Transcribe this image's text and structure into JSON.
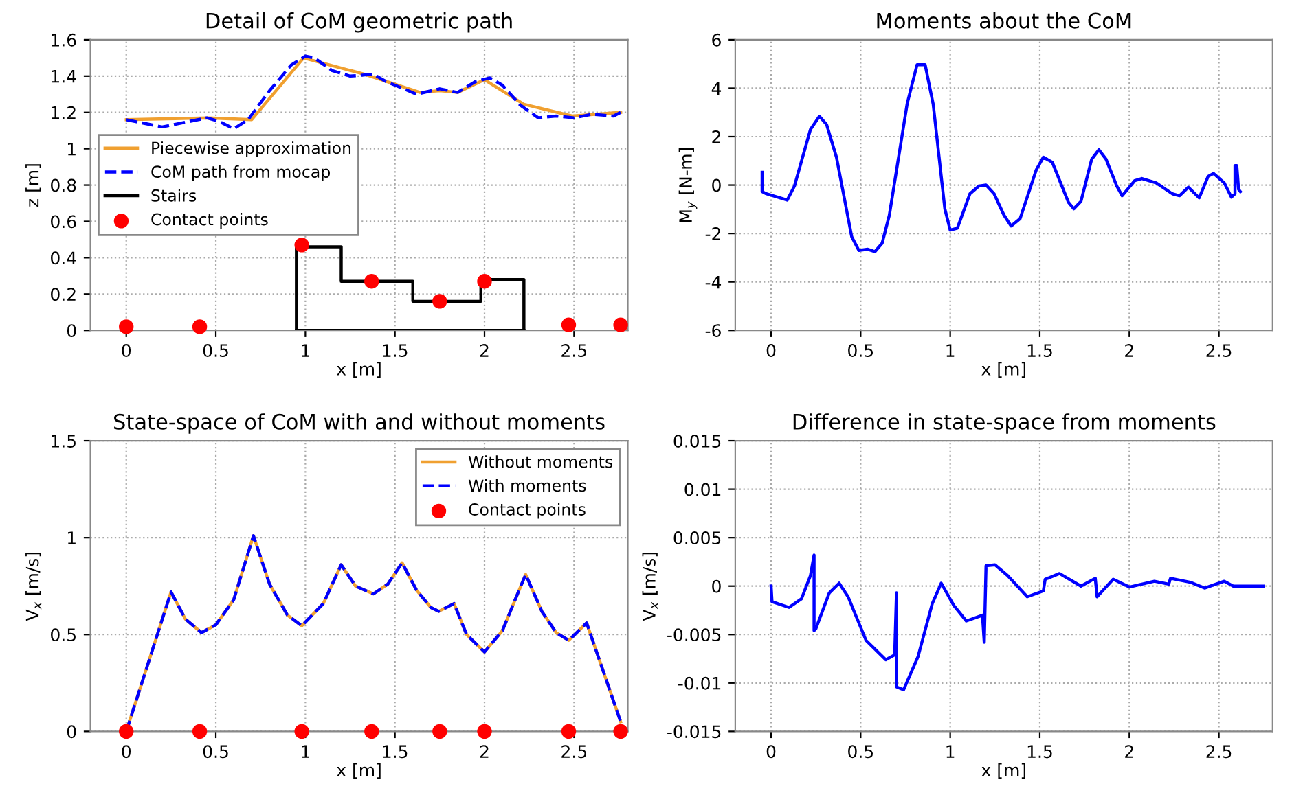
{
  "chart_data": [
    {
      "type": "line",
      "title": "Detail of CoM geometric path",
      "xlabel": "x [m]",
      "ylabel": "z [m]",
      "xlim": [
        -0.2,
        2.8
      ],
      "ylim": [
        0,
        1.6
      ],
      "xticks": [
        0,
        0.5,
        1,
        1.5,
        2,
        2.5
      ],
      "yticks": [
        0,
        0.2,
        0.4,
        0.6,
        0.8,
        1,
        1.2,
        1.4,
        1.6
      ],
      "grid": true,
      "legend": "center left",
      "series": [
        {
          "name": "Piecewise approximation",
          "type": "line",
          "color": "#f0a030",
          "line_style": "solid",
          "x": [
            0,
            0.46,
            0.7,
            0.99,
            1.33,
            1.64,
            1.75,
            1.85,
            2.0,
            2.22,
            2.49,
            2.76
          ],
          "values": [
            1.16,
            1.17,
            1.16,
            1.5,
            1.41,
            1.31,
            1.32,
            1.31,
            1.38,
            1.245,
            1.18,
            1.2
          ]
        },
        {
          "name": "CoM path from mocap",
          "type": "line",
          "color": "#0000ff",
          "line_style": "dashed",
          "x": [
            0,
            0.2,
            0.45,
            0.52,
            0.6,
            0.68,
            0.8,
            0.92,
            1.0,
            1.05,
            1.15,
            1.25,
            1.38,
            1.45,
            1.55,
            1.62,
            1.75,
            1.85,
            1.95,
            2.03,
            2.1,
            2.2,
            2.3,
            2.4,
            2.5,
            2.6,
            2.72,
            2.76
          ],
          "values": [
            1.16,
            1.12,
            1.17,
            1.15,
            1.11,
            1.16,
            1.32,
            1.46,
            1.51,
            1.5,
            1.43,
            1.4,
            1.41,
            1.37,
            1.33,
            1.3,
            1.33,
            1.31,
            1.37,
            1.39,
            1.35,
            1.24,
            1.17,
            1.18,
            1.17,
            1.19,
            1.18,
            1.2
          ]
        },
        {
          "name": "Stairs",
          "color": "#000000",
          "line_style": "solid",
          "x": [
            0.95,
            0.95,
            1.2,
            1.2,
            1.6,
            1.6,
            1.98,
            1.98,
            2.22,
            2.22
          ],
          "values": [
            0,
            0.46,
            0.46,
            0.27,
            0.27,
            0.16,
            0.16,
            0.28,
            0.28,
            0
          ]
        },
        {
          "color": "#000000",
          "line_style": "solid",
          "x": [
            0.95,
            2.22
          ],
          "values": [
            0,
            0
          ]
        },
        {
          "name": "Contact points",
          "type": "scatter",
          "color": "#ff0000",
          "marker": "circle",
          "x": [
            0,
            0.41,
            0.98,
            1.37,
            1.75,
            2.0,
            2.47,
            2.76
          ],
          "values": [
            0.02,
            0.02,
            0.47,
            0.27,
            0.16,
            0.27,
            0.03,
            0.03
          ]
        }
      ]
    },
    {
      "type": "line",
      "title": "Moments about the CoM",
      "xlabel": "x [m]",
      "ylabel": "M$_{y}$ [N-m]",
      "xlim": [
        -0.2,
        2.8
      ],
      "ylim": [
        -6,
        6
      ],
      "xticks": [
        0,
        0.5,
        1,
        1.5,
        2,
        2.5
      ],
      "yticks": [
        -6,
        -4,
        -2,
        0,
        2,
        4,
        6
      ],
      "grid": true,
      "series": [
        {
          "type": "line",
          "color": "#0000ff",
          "line_style": "solid",
          "x": [
            -0.05,
            -0.05,
            -0.03,
            0.09,
            0.13,
            0.22,
            0.27,
            0.31,
            0.365,
            0.45,
            0.49,
            0.54,
            0.58,
            0.62,
            0.66,
            0.76,
            0.815,
            0.86,
            0.905,
            0.97,
            1.0,
            1.04,
            1.11,
            1.16,
            1.2,
            1.245,
            1.3,
            1.34,
            1.39,
            1.48,
            1.52,
            1.57,
            1.66,
            1.69,
            1.73,
            1.79,
            1.83,
            1.87,
            1.93,
            1.96,
            2.03,
            2.07,
            2.15,
            2.24,
            2.28,
            2.33,
            2.39,
            2.44,
            2.47,
            2.53,
            2.57,
            2.59,
            2.59,
            2.6,
            2.61,
            2.62
          ],
          "values": [
            0.53,
            -0.27,
            -0.35,
            -0.62,
            -0.05,
            2.3,
            2.84,
            2.5,
            1.15,
            -2.13,
            -2.7,
            -2.65,
            -2.75,
            -2.4,
            -1.25,
            3.37,
            4.97,
            4.97,
            3.34,
            -0.98,
            -1.86,
            -1.78,
            -0.36,
            -0.04,
            0,
            -0.36,
            -1.24,
            -1.69,
            -1.39,
            0.62,
            1.15,
            0.94,
            -0.71,
            -0.98,
            -0.67,
            1.07,
            1.46,
            1.07,
            -0.04,
            -0.44,
            0.18,
            0.27,
            0.09,
            -0.36,
            -0.44,
            -0.09,
            -0.53,
            0.36,
            0.48,
            0.09,
            -0.5,
            -0.36,
            0.8,
            0.8,
            -0.18,
            -0.27
          ]
        }
      ]
    },
    {
      "type": "line",
      "title": "State-space of CoM with and without moments",
      "xlabel": "x [m]",
      "ylabel": "V$_{x}$ [m/s]",
      "xlim": [
        -0.2,
        2.8
      ],
      "ylim": [
        0,
        1.5
      ],
      "xticks": [
        0,
        0.5,
        1,
        1.5,
        2,
        2.5
      ],
      "yticks": [
        0,
        0.5,
        1,
        1.5
      ],
      "grid": true,
      "legend": "top right",
      "series": [
        {
          "name": "Without moments",
          "type": "line",
          "color": "#f0a030",
          "line_style": "solid",
          "x": [
            0,
            0.25,
            0.33,
            0.42,
            0.5,
            0.6,
            0.71,
            0.8,
            0.9,
            0.98,
            1.1,
            1.2,
            1.28,
            1.38,
            1.46,
            1.54,
            1.62,
            1.7,
            1.745,
            1.83,
            1.9,
            2.0,
            2.1,
            2.18,
            2.23,
            2.32,
            2.4,
            2.47,
            2.57,
            2.76
          ],
          "values": [
            0,
            0.72,
            0.58,
            0.51,
            0.55,
            0.68,
            1.01,
            0.76,
            0.6,
            0.545,
            0.66,
            0.86,
            0.75,
            0.71,
            0.76,
            0.87,
            0.73,
            0.64,
            0.62,
            0.66,
            0.5,
            0.41,
            0.52,
            0.7,
            0.81,
            0.62,
            0.51,
            0.47,
            0.56,
            0.05
          ]
        },
        {
          "name": "With moments",
          "type": "line",
          "color": "#0000ff",
          "line_style": "dashed",
          "x": [
            0,
            0.25,
            0.33,
            0.42,
            0.5,
            0.6,
            0.71,
            0.8,
            0.9,
            0.98,
            1.1,
            1.2,
            1.28,
            1.38,
            1.46,
            1.54,
            1.62,
            1.7,
            1.745,
            1.83,
            1.9,
            2.0,
            2.1,
            2.18,
            2.23,
            2.32,
            2.4,
            2.47,
            2.57,
            2.76
          ],
          "values": [
            0,
            0.72,
            0.58,
            0.51,
            0.55,
            0.68,
            1.01,
            0.76,
            0.6,
            0.545,
            0.66,
            0.86,
            0.75,
            0.71,
            0.76,
            0.87,
            0.73,
            0.64,
            0.62,
            0.66,
            0.5,
            0.41,
            0.52,
            0.7,
            0.81,
            0.62,
            0.51,
            0.47,
            0.56,
            0.05
          ]
        },
        {
          "name": "Contact points",
          "type": "scatter",
          "color": "#ff0000",
          "marker": "circle",
          "x": [
            0,
            0.41,
            0.98,
            1.37,
            1.75,
            2.0,
            2.47,
            2.76
          ],
          "values": [
            0,
            0,
            0,
            0,
            0,
            0,
            0,
            0
          ]
        }
      ]
    },
    {
      "type": "line",
      "title": "Difference in state-space from moments",
      "xlabel": "x [m]",
      "ylabel": "V$_{x}$ [m/s]",
      "xlim": [
        -0.2,
        2.8
      ],
      "ylim": [
        -0.015,
        0.015
      ],
      "xticks": [
        0,
        0.5,
        1,
        1.5,
        2,
        2.5
      ],
      "yticks": [
        -0.015,
        -0.01,
        -0.005,
        0,
        0.005,
        0.01,
        0.015
      ],
      "grid": true,
      "series": [
        {
          "type": "line",
          "color": "#0000ff",
          "line_style": "solid",
          "x": [
            0,
            0.005,
            0.1,
            0.17,
            0.22,
            0.24,
            0.24,
            0.25,
            0.325,
            0.38,
            0.43,
            0.53,
            0.64,
            0.69,
            0.7,
            0.7,
            0.74,
            0.82,
            0.9,
            0.95,
            1.02,
            1.09,
            1.18,
            1.19,
            1.2,
            1.25,
            1.32,
            1.43,
            1.52,
            1.53,
            1.61,
            1.73,
            1.81,
            1.82,
            1.91,
            2.0,
            2.14,
            2.22,
            2.23,
            2.34,
            2.42,
            2.53,
            2.58,
            2.75
          ],
          "values": [
            0,
            -0.0016,
            -0.0022,
            -0.0013,
            0.0011,
            0.0032,
            -0.0046,
            -0.0044,
            -0.0007,
            0.0003,
            -0.0011,
            -0.0056,
            -0.0076,
            -0.0071,
            -0.0007,
            -0.0104,
            -0.0107,
            -0.0073,
            -0.0018,
            0.0003,
            -0.002,
            -0.0036,
            -0.003,
            -0.0058,
            0.0021,
            0.0022,
            0.0011,
            -0.0011,
            -0.0005,
            0.0007,
            0.0013,
            0,
            0.0008,
            -0.0011,
            0.0007,
            -0.0001,
            0.0005,
            0.0002,
            0.0008,
            0.0004,
            -0.0002,
            0.0005,
            0,
            0
          ]
        }
      ]
    }
  ]
}
